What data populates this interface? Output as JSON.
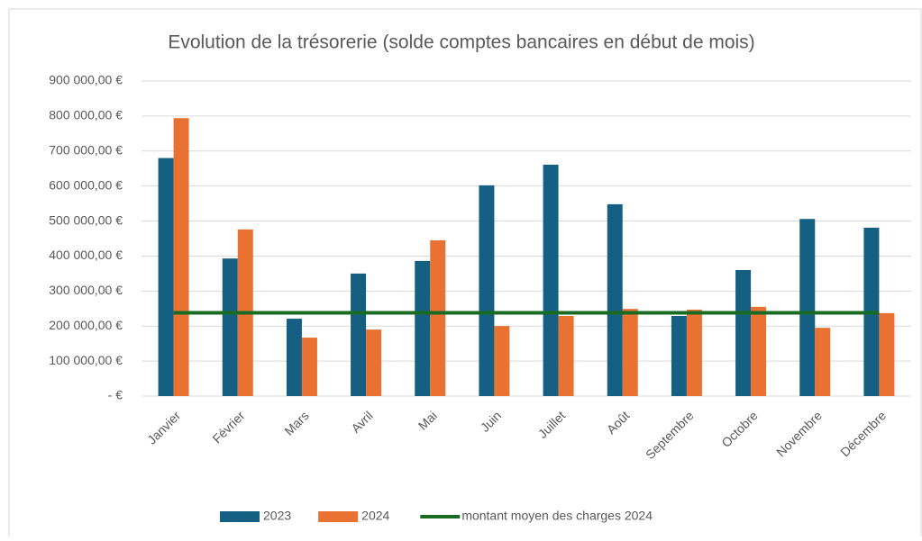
{
  "chart_data": {
    "type": "bar",
    "title": "Evolution de la trésorerie (solde comptes bancaires en début de mois)",
    "categories": [
      "Janvier",
      "Février",
      "Mars",
      "Avril",
      "Mai",
      "Juin",
      "Juillet",
      "Août",
      "Septembre",
      "Octobre",
      "Novembre",
      "Décembre"
    ],
    "series": [
      {
        "name": "2023",
        "color": "#156082",
        "values": [
          680000,
          393000,
          221000,
          350000,
          386000,
          602000,
          661000,
          548000,
          229000,
          360000,
          506000,
          481000
        ]
      },
      {
        "name": "2024",
        "color": "#e97132",
        "values": [
          794000,
          476000,
          167000,
          190000,
          445000,
          200000,
          229000,
          249000,
          247000,
          255000,
          195000,
          237000
        ]
      },
      {
        "name": "montant moyen des charges 2024",
        "color": "#196b24",
        "type": "line",
        "values": [
          238000,
          238000,
          238000,
          238000,
          238000,
          238000,
          238000,
          238000,
          238000,
          238000,
          238000,
          238000
        ]
      }
    ],
    "ylim": [
      0,
      900000
    ],
    "yticks": [
      {
        "value": 0,
        "label": "-   €"
      },
      {
        "value": 100000,
        "label": "100 000,00 €"
      },
      {
        "value": 200000,
        "label": "200 000,00 €"
      },
      {
        "value": 300000,
        "label": "300 000,00 €"
      },
      {
        "value": 400000,
        "label": "400 000,00 €"
      },
      {
        "value": 500000,
        "label": "500 000,00 €"
      },
      {
        "value": 600000,
        "label": "600 000,00 €"
      },
      {
        "value": 700000,
        "label": "700 000,00 €"
      },
      {
        "value": 800000,
        "label": "800 000,00 €"
      },
      {
        "value": 900000,
        "label": "900 000,00 €"
      }
    ],
    "grid": true,
    "legend": "bottom"
  }
}
